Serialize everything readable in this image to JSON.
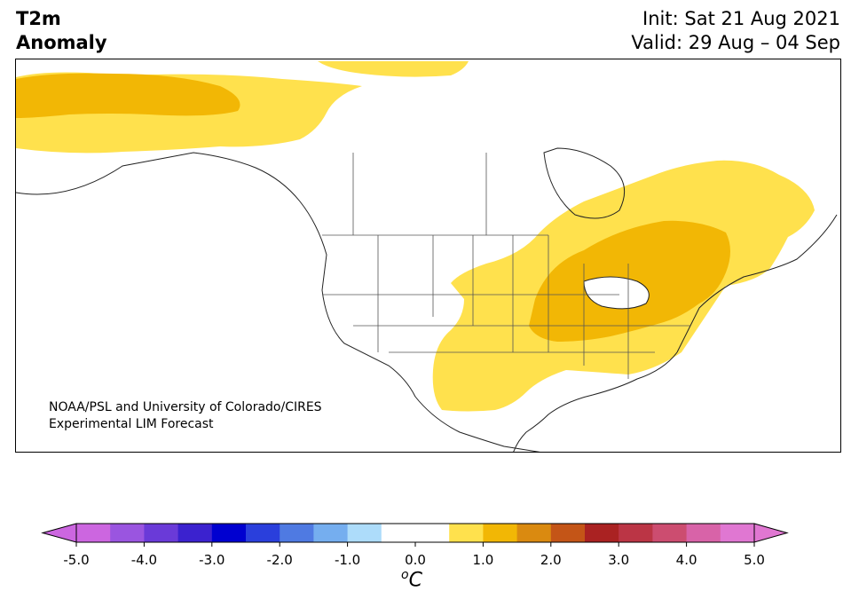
{
  "header": {
    "title_line1": "T2m",
    "title_line2": "Anomaly",
    "init": "Init: Sat 21 Aug 2021",
    "valid": "Valid: 29 Aug – 04 Sep"
  },
  "map": {
    "region": "North America",
    "credit_line1": "NOAA/PSL and University of Colorado/CIRES",
    "credit_line2": "Experimental LIM Forecast",
    "fill_colors": {
      "light_warm": "#ffe14d",
      "mid_warm": "#f2b705"
    }
  },
  "colorbar": {
    "ticks": [
      "-5.0",
      "-4.0",
      "-3.0",
      "-2.0",
      "-1.0",
      "0.0",
      "1.0",
      "2.0",
      "3.0",
      "4.0",
      "5.0"
    ],
    "unit_superscript": "o",
    "unit_letter": "C",
    "colors": [
      "#cc66e0",
      "#9a55e0",
      "#6a3ad8",
      "#3b22cf",
      "#0000d0",
      "#2a3fdc",
      "#4f7ae2",
      "#75aeef",
      "#addcfa",
      "#ffffff",
      "#ffffff",
      "#ffe14d",
      "#f2b705",
      "#da8a10",
      "#c45517",
      "#aa2222",
      "#bb3545",
      "#cc4d70",
      "#d863a8",
      "#e077d2"
    ],
    "under_color": "#cc66e0",
    "over_color": "#e077d2"
  }
}
